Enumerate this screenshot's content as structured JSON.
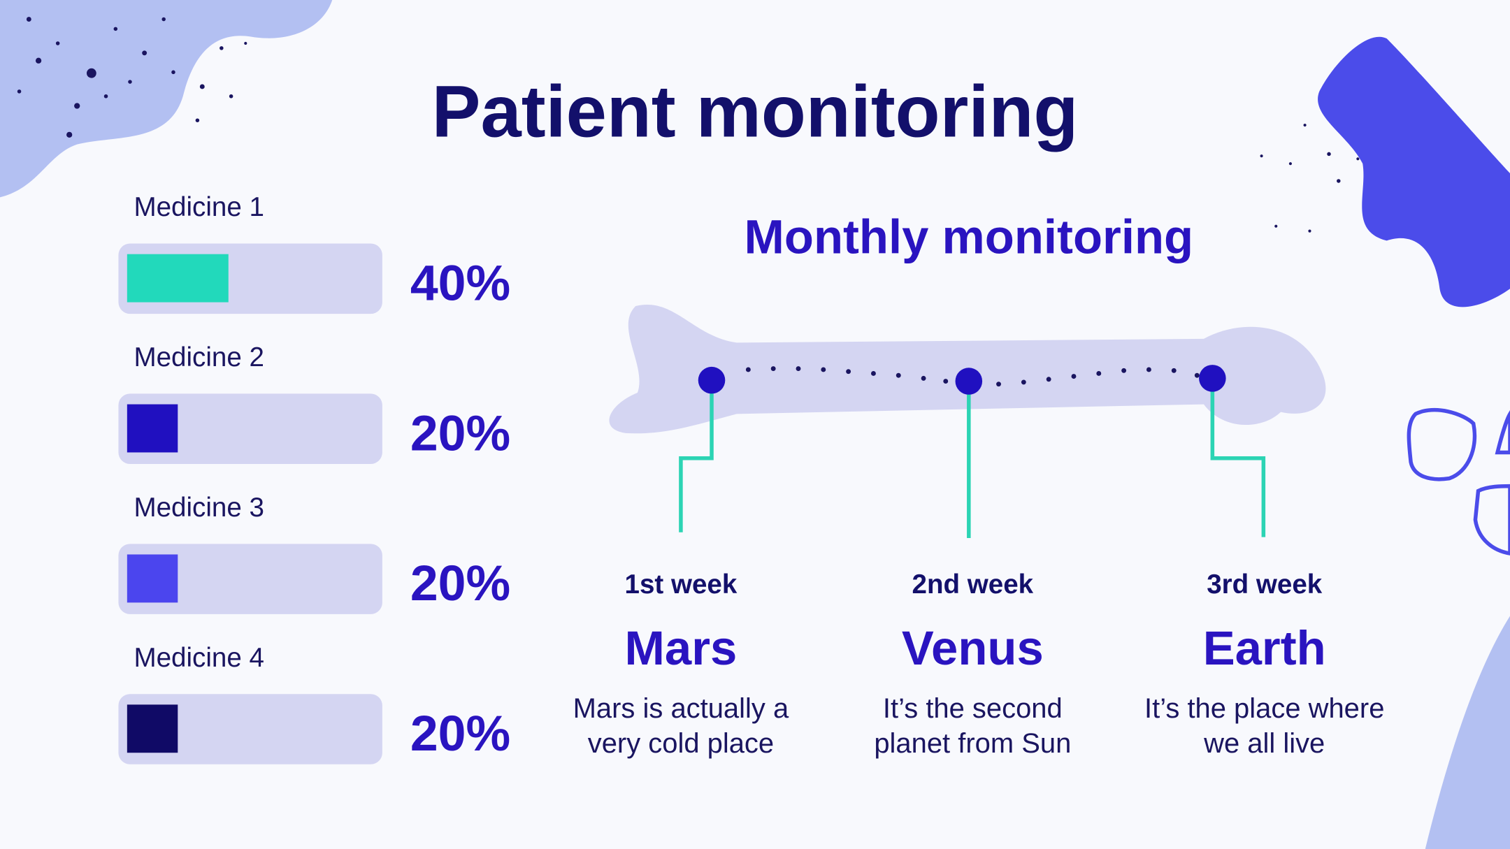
{
  "title": "Patient monitoring",
  "medicines": [
    {
      "label": "Medicine 1",
      "value": 40,
      "value_label": "40%",
      "color": "#22d9bb"
    },
    {
      "label": "Medicine 2",
      "value": 20,
      "value_label": "20%",
      "color": "#2010c0"
    },
    {
      "label": "Medicine 3",
      "value": 20,
      "value_label": "20%",
      "color": "#4b45ee"
    },
    {
      "label": "Medicine 4",
      "value": 20,
      "value_label": "20%",
      "color": "#100a66"
    }
  ],
  "subtitle": "Monthly monitoring",
  "weeks": [
    {
      "week": "1st week",
      "name": "Mars",
      "description": [
        "Mars is actually a",
        "very cold place"
      ]
    },
    {
      "week": "2nd week",
      "name": "Venus",
      "description": [
        "It’s the second",
        "planet from Sun"
      ]
    },
    {
      "week": "3rd week",
      "name": "Earth",
      "description": [
        "It’s the place where",
        "we all live"
      ]
    }
  ]
}
